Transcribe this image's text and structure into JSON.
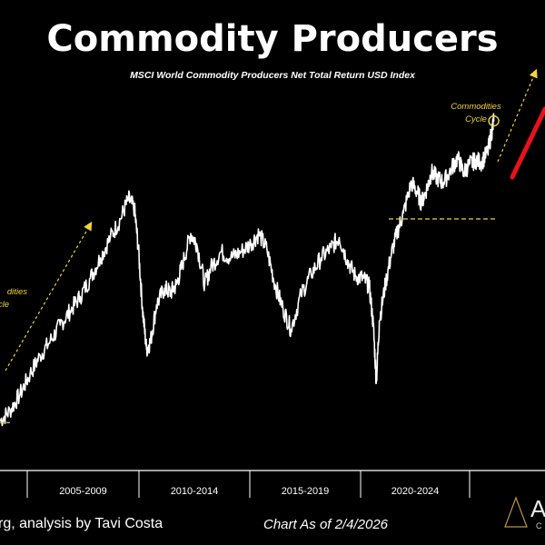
{
  "header": {
    "title": "Commodity Producers",
    "subtitle": "MSCI World Commodity Producers Net Total Return USD Index"
  },
  "footer": {
    "source": "rg, analysis by Tavi Costa",
    "as_of": "Chart As of 2/4/2026",
    "logo_text": "A",
    "logo_sub": "C"
  },
  "annotations": {
    "right_cycle_line1": "Commodities",
    "right_cycle_line2": "Cycle",
    "left_cycle_line1": "dities",
    "left_cycle_line2": "cle"
  },
  "colors": {
    "background": "#000000",
    "series": "#ffffff",
    "annotation": "#f2d43a",
    "arrow_red": "#e8121b"
  },
  "chart_data": {
    "type": "line",
    "title": "Commodity Producers",
    "subtitle": "MSCI World Commodity Producers Net Total Return USD Index",
    "xlabel": "",
    "ylabel": "",
    "x_tick_labels": [
      "2005-2009",
      "2010-2014",
      "2015-2019",
      "2020-2024"
    ],
    "x_range": [
      2001.5,
      2026.3
    ],
    "y_range": [
      30,
      195
    ],
    "grid": false,
    "legend": "none",
    "series": [
      {
        "x": [
          2001.5,
          2002.0,
          2002.5,
          2003.0,
          2003.5,
          2004.0,
          2004.5,
          2005.0,
          2005.5,
          2006.0,
          2006.5,
          2007.0,
          2007.5,
          2007.9,
          2008.2,
          2008.4,
          2008.6,
          2008.8,
          2009.0,
          2009.3,
          2009.7,
          2010.0,
          2010.3,
          2010.6,
          2011.0,
          2011.3,
          2011.7,
          2012.0,
          2012.5,
          2013.0,
          2013.5,
          2014.0,
          2014.4,
          2014.8,
          2015.2,
          2015.6,
          2016.0,
          2016.5,
          2017.0,
          2017.5,
          2018.0,
          2018.4,
          2018.8,
          2019.2,
          2019.6,
          2019.9,
          2020.1,
          2020.25,
          2020.4,
          2020.7,
          2021.0,
          2021.3,
          2021.6,
          2022.0,
          2022.3,
          2022.5,
          2022.8,
          2023.0,
          2023.3,
          2023.6,
          2024.0,
          2024.3,
          2024.6,
          2024.9,
          2025.2,
          2025.5,
          2025.8,
          2026.0,
          2026.1
        ],
        "y": [
          33,
          38,
          46,
          56,
          65,
          72,
          80,
          87,
          94,
          103,
          113,
          123,
          132,
          142,
          137,
          117,
          88,
          68,
          72,
          90,
          98,
          96,
          100,
          110,
          125,
          120,
          100,
          108,
          116,
          113,
          116,
          120,
          125,
          117,
          100,
          88,
          78,
          95,
          105,
          113,
          118,
          123,
          112,
          104,
          103,
          99,
          80,
          52,
          82,
          100,
          115,
          126,
          135,
          150,
          145,
          140,
          148,
          155,
          152,
          150,
          157,
          162,
          155,
          159,
          161,
          160,
          165,
          175,
          180
        ]
      }
    ],
    "annotations": [
      "Commodities Cycle"
    ]
  }
}
